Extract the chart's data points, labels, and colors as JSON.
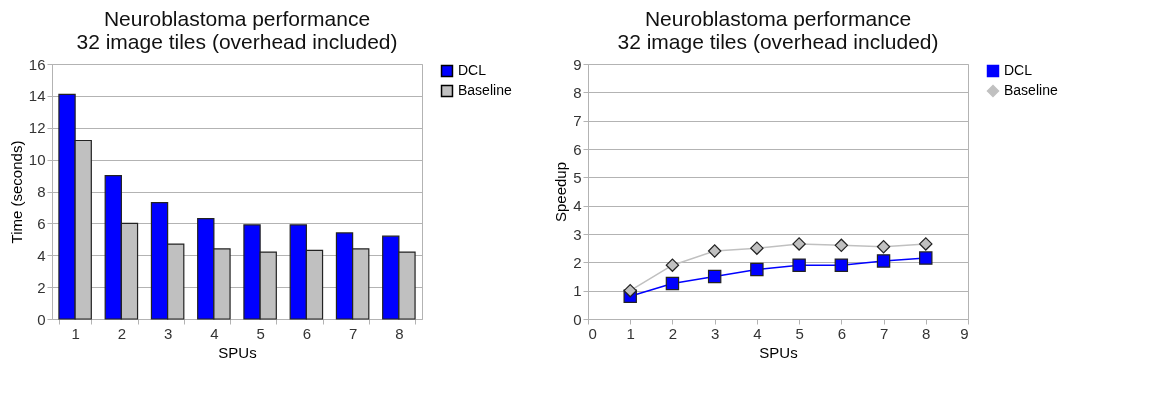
{
  "chart_data": [
    {
      "type": "bar",
      "title": "Neuroblastoma performance\n32 image tiles (overhead included)",
      "xlabel": "SPUs",
      "ylabel": "Time (seconds)",
      "categories": [
        "1",
        "2",
        "3",
        "4",
        "5",
        "6",
        "7",
        "8"
      ],
      "series": [
        {
          "name": "DCL",
          "color": "#0000ff",
          "values": [
            14.1,
            9.0,
            7.3,
            6.3,
            5.9,
            5.9,
            5.4,
            5.2
          ]
        },
        {
          "name": "Baseline",
          "color": "#c0c0c0",
          "values": [
            11.2,
            6.0,
            4.7,
            4.4,
            4.2,
            4.3,
            4.4,
            4.2
          ]
        }
      ],
      "ylim": [
        0,
        16
      ],
      "yticks": [
        0,
        2,
        4,
        6,
        8,
        10,
        12,
        14,
        16
      ],
      "grid": "y",
      "legend": "right"
    },
    {
      "type": "line",
      "title": "Neuroblastoma performance\n32 image tiles (overhead included)",
      "xlabel": "SPUs",
      "ylabel": "Speedup",
      "x": [
        1,
        2,
        3,
        4,
        5,
        6,
        7,
        8
      ],
      "series": [
        {
          "name": "DCL",
          "color": "#0000ff",
          "marker": "square",
          "values": [
            0.8,
            1.25,
            1.5,
            1.75,
            1.9,
            1.9,
            2.05,
            2.15
          ]
        },
        {
          "name": "Baseline",
          "color": "#c0c0c0",
          "marker": "diamond",
          "values": [
            1.0,
            1.9,
            2.4,
            2.5,
            2.65,
            2.6,
            2.55,
            2.65
          ]
        }
      ],
      "xlim": [
        0,
        9
      ],
      "xticks": [
        0,
        1,
        2,
        3,
        4,
        5,
        6,
        7,
        8,
        9
      ],
      "ylim": [
        0,
        9
      ],
      "yticks": [
        0,
        1,
        2,
        3,
        4,
        5,
        6,
        7,
        8,
        9
      ],
      "grid": "y",
      "legend": "right"
    }
  ]
}
